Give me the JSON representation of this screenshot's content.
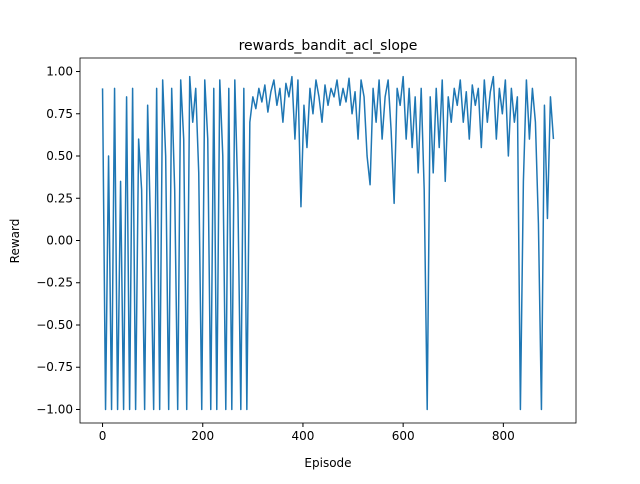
{
  "chart_data": {
    "type": "line",
    "title": "rewards_bandit_acl_slope",
    "x_label": "Episode",
    "y_label": "Reward",
    "x": [
      0,
      6,
      12,
      18,
      24,
      30,
      36,
      42,
      48,
      54,
      60,
      66,
      72,
      78,
      84,
      90,
      96,
      102,
      108,
      114,
      120,
      126,
      132,
      138,
      144,
      150,
      156,
      162,
      168,
      174,
      180,
      186,
      192,
      198,
      204,
      210,
      216,
      222,
      228,
      234,
      240,
      246,
      252,
      258,
      264,
      270,
      276,
      282,
      288,
      294,
      300,
      306,
      312,
      318,
      324,
      330,
      336,
      342,
      348,
      354,
      360,
      366,
      372,
      378,
      384,
      390,
      396,
      402,
      408,
      414,
      420,
      426,
      432,
      438,
      444,
      450,
      456,
      462,
      468,
      474,
      480,
      486,
      492,
      498,
      504,
      510,
      516,
      522,
      528,
      534,
      540,
      546,
      552,
      558,
      564,
      570,
      576,
      582,
      588,
      594,
      600,
      606,
      612,
      618,
      624,
      630,
      636,
      642,
      648,
      654,
      660,
      666,
      672,
      678,
      684,
      690,
      696,
      702,
      708,
      714,
      720,
      726,
      732,
      738,
      744,
      750,
      756,
      762,
      768,
      774,
      780,
      786,
      792,
      798,
      804,
      810,
      816,
      822,
      828,
      834,
      840,
      846,
      852,
      858,
      864,
      870,
      876,
      882,
      888,
      894,
      900
    ],
    "series": [
      {
        "name": "rewards",
        "color": "#1f77b4",
        "values": [
          0.9,
          -1,
          0.5,
          -1,
          0.9,
          -1,
          0.35,
          -1,
          0.85,
          -1,
          0.9,
          -1,
          0.6,
          0.3,
          -1,
          0.8,
          0.05,
          -1,
          0.9,
          -1,
          0.95,
          0.5,
          -1,
          0.9,
          0.3,
          -1,
          0.95,
          0.6,
          -1,
          0.97,
          0.7,
          0.9,
          0.4,
          -1,
          0.95,
          0.6,
          -1,
          0.9,
          -1,
          0.95,
          0.5,
          -1,
          0.9,
          -1,
          0.95,
          0.27,
          -1,
          0.9,
          -1,
          0.7,
          0.85,
          0.78,
          0.9,
          0.82,
          0.92,
          0.76,
          0.88,
          0.95,
          0.8,
          0.9,
          0.7,
          0.93,
          0.85,
          0.97,
          0.6,
          0.95,
          0.2,
          0.8,
          0.55,
          0.9,
          0.75,
          0.95,
          0.85,
          0.7,
          0.92,
          0.8,
          0.9,
          0.85,
          0.95,
          0.8,
          0.9,
          0.82,
          0.96,
          0.75,
          0.88,
          0.6,
          0.95,
          0.85,
          0.5,
          0.33,
          0.9,
          0.7,
          0.95,
          0.6,
          0.85,
          0.95,
          0.65,
          0.22,
          0.9,
          0.8,
          0.97,
          0.6,
          0.9,
          0.55,
          0.85,
          0.4,
          0.9,
          0.3,
          -1,
          0.85,
          0.4,
          0.9,
          0.55,
          0.95,
          0.35,
          0.85,
          0.7,
          0.9,
          0.8,
          0.95,
          0.7,
          0.88,
          0.6,
          0.92,
          0.8,
          0.9,
          0.55,
          0.95,
          0.7,
          0.88,
          0.97,
          0.6,
          0.9,
          0.75,
          0.95,
          0.5,
          0.9,
          0.7,
          0.85,
          -1,
          0.35,
          0.95,
          0.6,
          0.9,
          0.7,
          0.1,
          -1,
          0.8,
          0.13,
          0.85,
          0.6
        ]
      }
    ],
    "xlim": [
      -45,
      945
    ],
    "ylim": [
      -1.08,
      1.08
    ],
    "xticks": [
      0,
      200,
      400,
      600,
      800
    ],
    "yticks": [
      {
        "value": -1,
        "label": "−1.00"
      },
      {
        "value": -0.75,
        "label": "−0.75"
      },
      {
        "value": -0.5,
        "label": "−0.50"
      },
      {
        "value": -0.25,
        "label": "−0.25"
      },
      {
        "value": 0,
        "label": "0.00"
      },
      {
        "value": 0.25,
        "label": "0.25"
      },
      {
        "value": 0.5,
        "label": "0.50"
      },
      {
        "value": 0.75,
        "label": "0.75"
      },
      {
        "value": 1,
        "label": "1.00"
      }
    ]
  }
}
